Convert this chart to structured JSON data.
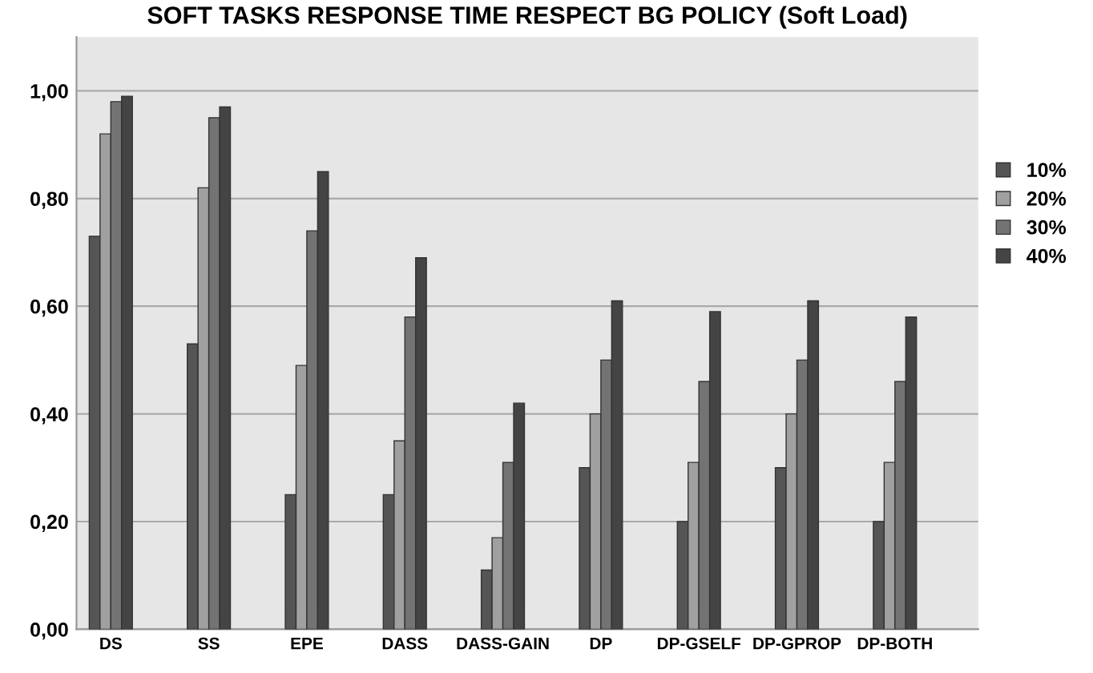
{
  "chart_data": {
    "type": "bar",
    "title": "SOFT TASKS RESPONSE TIME RESPECT BG POLICY (Soft Load)",
    "categories": [
      "DS",
      "SS",
      "EPE",
      "DASS",
      "DASS-GAIN",
      "DP",
      "DP-GSELF",
      "DP-GPROP",
      "DP-BOTH"
    ],
    "series": [
      {
        "name": "10%",
        "color": "#555555",
        "values": [
          0.73,
          0.53,
          0.25,
          0.25,
          0.11,
          0.3,
          0.2,
          0.3,
          0.2
        ]
      },
      {
        "name": "20%",
        "color": "#a0a0a0",
        "values": [
          0.92,
          0.82,
          0.49,
          0.35,
          0.17,
          0.4,
          0.31,
          0.4,
          0.31
        ]
      },
      {
        "name": "30%",
        "color": "#737373",
        "values": [
          0.98,
          0.95,
          0.74,
          0.58,
          0.31,
          0.5,
          0.46,
          0.5,
          0.46
        ]
      },
      {
        "name": "40%",
        "color": "#444444",
        "values": [
          0.99,
          0.97,
          0.85,
          0.69,
          0.42,
          0.61,
          0.59,
          0.61,
          0.58
        ]
      }
    ],
    "ylim": [
      0,
      1.1
    ],
    "yticks": [
      {
        "value": 0,
        "label": "0,00"
      },
      {
        "value": 0.2,
        "label": "0,20"
      },
      {
        "value": 0.4,
        "label": "0,40"
      },
      {
        "value": 0.6,
        "label": "0,60"
      },
      {
        "value": 0.8,
        "label": "0,80"
      },
      {
        "value": 1.0,
        "label": "1,00"
      }
    ],
    "grid": "y",
    "legend": "right"
  }
}
